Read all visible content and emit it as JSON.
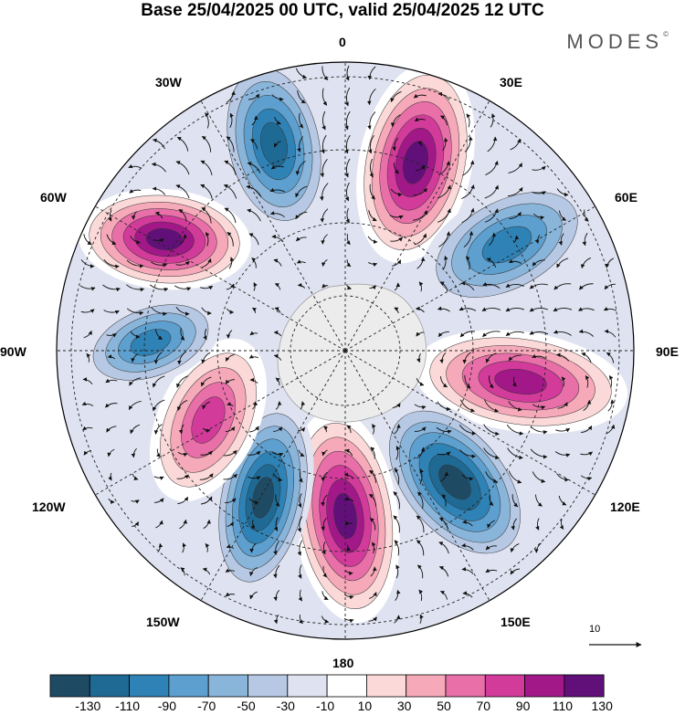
{
  "title": "Base 25/04/2025 00 UTC, valid 25/04/2025 12 UTC",
  "brand": "MODES",
  "brand_mark": "©",
  "longitude_labels": {
    "lon_0": "0",
    "lon_30e": "30E",
    "lon_60e": "60E",
    "lon_90e": "90E",
    "lon_120e": "120E",
    "lon_150e": "150E",
    "lon_180": "180",
    "lon_150w": "150W",
    "lon_120w": "120W",
    "lon_90w": "90W",
    "lon_60w": "60W",
    "lon_30w": "30W"
  },
  "reference_vector": "10",
  "colorbar": {
    "colors": [
      "#1f4a63",
      "#1e6a95",
      "#2f82b5",
      "#5d9fce",
      "#8ab5da",
      "#b6c8e3",
      "#dfe2f0",
      "#ffffff",
      "#fbd9d8",
      "#f5a9b9",
      "#e86fa8",
      "#d33b9b",
      "#a21889",
      "#61107a"
    ],
    "ticks": [
      "-130",
      "-110",
      "-90",
      "-70",
      "-50",
      "-30",
      "-10",
      "10",
      "30",
      "50",
      "70",
      "90",
      "110",
      "130"
    ]
  },
  "map_colors": {
    "antarctica": "#ececec",
    "grid": "#222222",
    "vector": "#111111"
  }
}
